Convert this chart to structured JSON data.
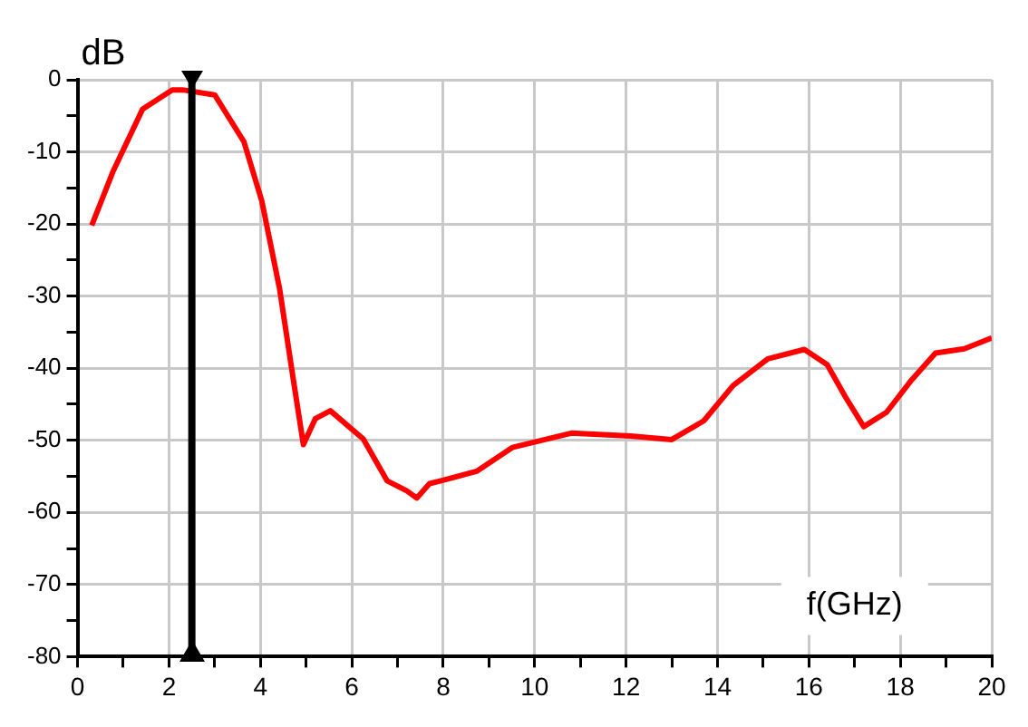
{
  "chart_data": {
    "type": "line",
    "xlabel": "f(GHz)",
    "ylabel": "dB",
    "x": [
      0.31,
      0.77,
      1.42,
      2.07,
      2.3,
      3.0,
      3.64,
      4.03,
      4.42,
      4.74,
      4.94,
      5.2,
      5.53,
      6.25,
      6.77,
      7.2,
      7.42,
      7.7,
      7.95,
      8.73,
      9.51,
      10.8,
      12.1,
      13.0,
      13.7,
      14.34,
      15.1,
      15.9,
      16.4,
      16.8,
      17.2,
      17.7,
      18.25,
      18.77,
      19.4,
      20
    ],
    "series": [
      {
        "color": "#ff0000",
        "values": [
          -20.2,
          -12.8,
          -4.1,
          -1.4,
          -1.4,
          -2.1,
          -8.6,
          -16.8,
          -29,
          -42.4,
          -50.6,
          -47,
          -45.9,
          -49.8,
          -55.6,
          -57,
          -58,
          -56,
          -55.6,
          -54.3,
          -51,
          -49,
          -49.4,
          -49.9,
          -47.3,
          -42.4,
          -38.7,
          -37.4,
          -39.5,
          -44,
          -48.1,
          -46.1,
          -41.6,
          -37.9,
          -37.3,
          -35.8
        ]
      }
    ],
    "xlim": [
      0,
      20
    ],
    "xticks": [
      0,
      {
        "value": 1,
        "label": null
      },
      2,
      {
        "value": 3,
        "label": null
      },
      4,
      {
        "value": 5,
        "label": null
      },
      6,
      {
        "value": 7,
        "label": null
      },
      8,
      {
        "value": 9,
        "label": null
      },
      10,
      {
        "value": 11,
        "label": null
      },
      12,
      {
        "value": 13,
        "label": null
      },
      14,
      {
        "value": 15,
        "label": null
      },
      16,
      {
        "value": 17,
        "label": null
      },
      18,
      {
        "value": 19,
        "label": null
      },
      20
    ],
    "ylim": [
      -80,
      0
    ],
    "yticks": [
      -80,
      {
        "value": -75,
        "label": null
      },
      -70,
      {
        "value": -65,
        "label": null
      },
      -60,
      {
        "value": -55,
        "label": null
      },
      -50,
      {
        "value": -45,
        "label": null
      },
      -40,
      {
        "value": -35,
        "label": null
      },
      -30,
      {
        "value": -25,
        "label": null
      },
      -20,
      {
        "value": -15,
        "label": null
      },
      -10,
      {
        "value": -5,
        "label": null
      },
      0
    ],
    "ref_lines": [
      {
        "axis": "x",
        "value": 2.5,
        "color": "#000000"
      }
    ],
    "grid": true,
    "marker": "none",
    "line_style": "solid",
    "legend": false
  }
}
